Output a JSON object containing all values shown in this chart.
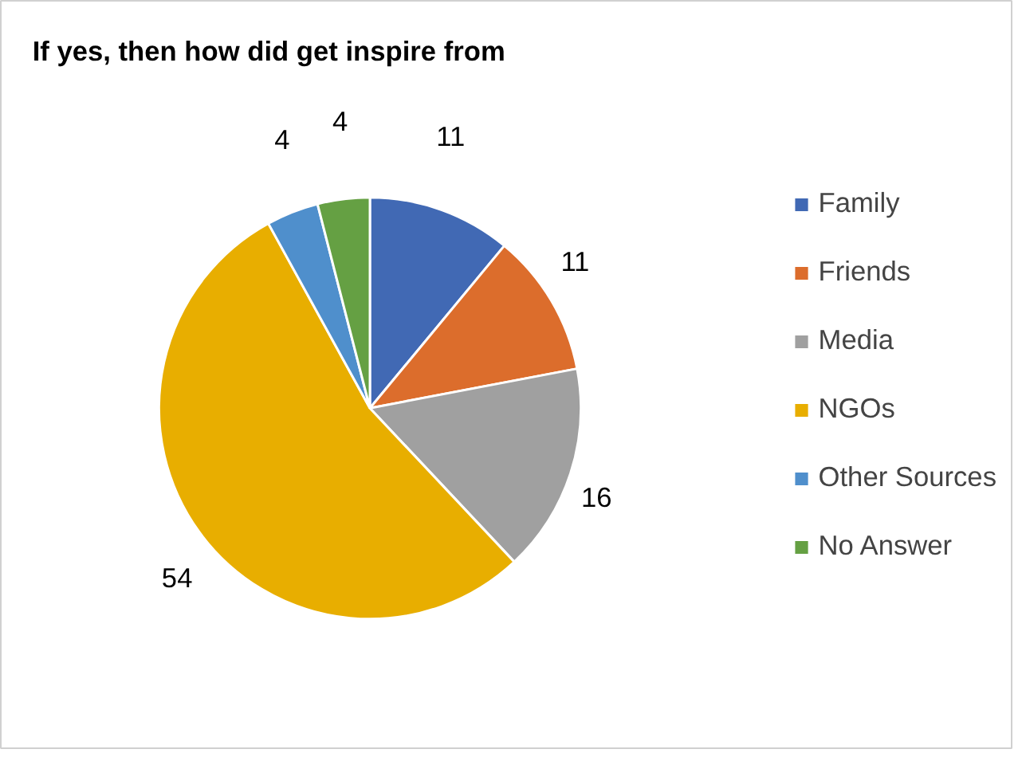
{
  "chart_data": {
    "type": "pie",
    "title": "If yes, then how did get inspire from",
    "categories": [
      "Family",
      "Friends",
      "Media",
      "NGOs",
      "Other Sources",
      "No Answer"
    ],
    "values": [
      11,
      11,
      16,
      54,
      4,
      4
    ],
    "colors": [
      "#4169b4",
      "#dc6d2c",
      "#a0a0a0",
      "#e8ae00",
      "#4f8fcc",
      "#65a043"
    ],
    "data_labels": true,
    "legend": "right"
  }
}
